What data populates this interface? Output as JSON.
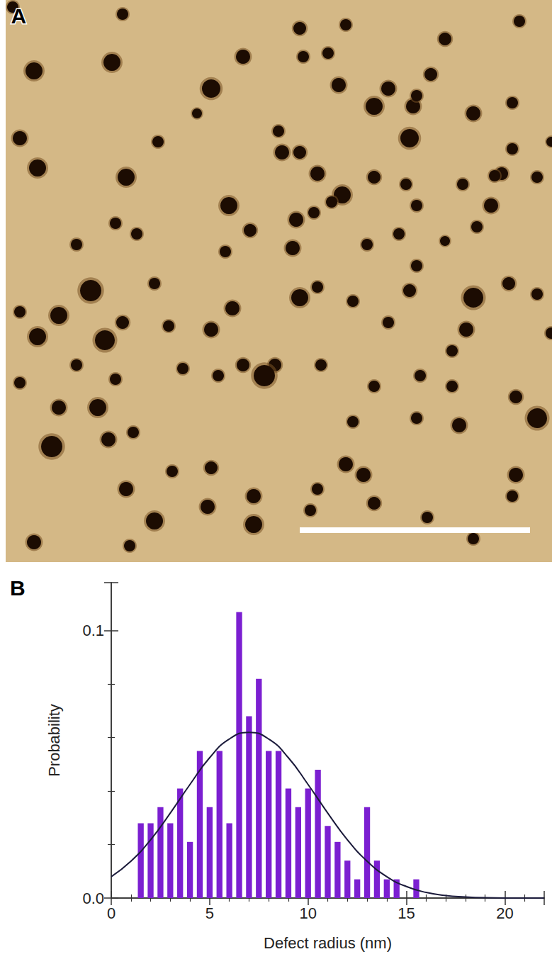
{
  "chart_data": [
    {
      "type": "image",
      "label": "A",
      "color": "#d4b886",
      "xlim": [
        0,
        771
      ],
      "ylim": [
        0,
        793
      ],
      "tick_labels": false,
      "defects": [
        [
          40,
          100,
          12
        ],
        [
          150,
          88,
          12
        ],
        [
          165,
          20,
          8
        ],
        [
          290,
          125,
          13
        ],
        [
          335,
          80,
          10
        ],
        [
          415,
          40,
          9
        ],
        [
          420,
          80,
          8
        ],
        [
          455,
          75,
          8
        ],
        [
          470,
          120,
          10
        ],
        [
          480,
          35,
          8
        ],
        [
          520,
          150,
          12
        ],
        [
          540,
          125,
          10
        ],
        [
          570,
          195,
          13
        ],
        [
          575,
          150,
          10
        ],
        [
          580,
          135,
          8
        ],
        [
          600,
          105,
          9
        ],
        [
          620,
          55,
          9
        ],
        [
          660,
          160,
          10
        ],
        [
          715,
          145,
          8
        ],
        [
          715,
          210,
          8
        ],
        [
          750,
          250,
          8
        ],
        [
          700,
          245,
          9
        ],
        [
          690,
          248,
          8
        ],
        [
          20,
          195,
          10
        ],
        [
          45,
          237,
          12
        ],
        [
          170,
          250,
          12
        ],
        [
          215,
          200,
          8
        ],
        [
          270,
          160,
          7
        ],
        [
          385,
          185,
          8
        ],
        [
          390,
          215,
          10
        ],
        [
          415,
          215,
          9
        ],
        [
          440,
          245,
          10
        ],
        [
          475,
          275,
          12
        ],
        [
          520,
          250,
          9
        ],
        [
          565,
          260,
          8
        ],
        [
          580,
          290,
          8
        ],
        [
          645,
          260,
          8
        ],
        [
          685,
          290,
          10
        ],
        [
          315,
          290,
          12
        ],
        [
          345,
          325,
          9
        ],
        [
          310,
          355,
          8
        ],
        [
          155,
          315,
          8
        ],
        [
          185,
          330,
          8
        ],
        [
          100,
          345,
          8
        ],
        [
          410,
          310,
          10
        ],
        [
          435,
          300,
          8
        ],
        [
          460,
          285,
          8
        ],
        [
          510,
          345,
          8
        ],
        [
          555,
          330,
          8
        ],
        [
          665,
          320,
          8
        ],
        [
          405,
          350,
          10
        ],
        [
          120,
          410,
          15
        ],
        [
          210,
          400,
          8
        ],
        [
          20,
          440,
          8
        ],
        [
          75,
          445,
          12
        ],
        [
          45,
          475,
          12
        ],
        [
          140,
          480,
          14
        ],
        [
          165,
          455,
          9
        ],
        [
          230,
          460,
          8
        ],
        [
          320,
          435,
          10
        ],
        [
          290,
          465,
          10
        ],
        [
          415,
          420,
          12
        ],
        [
          440,
          405,
          8
        ],
        [
          490,
          425,
          8
        ],
        [
          540,
          455,
          8
        ],
        [
          570,
          410,
          9
        ],
        [
          580,
          375,
          8
        ],
        [
          620,
          340,
          7
        ],
        [
          660,
          420,
          14
        ],
        [
          650,
          465,
          10
        ],
        [
          710,
          400,
          9
        ],
        [
          750,
          415,
          8
        ],
        [
          380,
          515,
          9
        ],
        [
          335,
          515,
          9
        ],
        [
          365,
          530,
          15
        ],
        [
          300,
          530,
          8
        ],
        [
          250,
          520,
          8
        ],
        [
          100,
          515,
          8
        ],
        [
          155,
          535,
          8
        ],
        [
          75,
          575,
          10
        ],
        [
          130,
          575,
          12
        ],
        [
          20,
          540,
          8
        ],
        [
          445,
          515,
          8
        ],
        [
          520,
          545,
          8
        ],
        [
          585,
          530,
          8
        ],
        [
          630,
          495,
          8
        ],
        [
          630,
          545,
          8
        ],
        [
          640,
          600,
          10
        ],
        [
          580,
          590,
          8
        ],
        [
          750,
          590,
          14
        ],
        [
          720,
          560,
          9
        ],
        [
          490,
          595,
          8
        ],
        [
          180,
          610,
          8
        ],
        [
          65,
          630,
          15
        ],
        [
          145,
          620,
          10
        ],
        [
          170,
          690,
          10
        ],
        [
          235,
          665,
          8
        ],
        [
          290,
          660,
          9
        ],
        [
          285,
          715,
          10
        ],
        [
          350,
          700,
          10
        ],
        [
          440,
          690,
          8
        ],
        [
          480,
          655,
          10
        ],
        [
          505,
          670,
          10
        ],
        [
          520,
          710,
          9
        ],
        [
          720,
          670,
          10
        ],
        [
          715,
          700,
          8
        ],
        [
          210,
          735,
          12
        ],
        [
          350,
          740,
          12
        ],
        [
          430,
          720,
          8
        ],
        [
          595,
          730,
          8
        ],
        [
          660,
          760,
          8
        ],
        [
          40,
          765,
          10
        ],
        [
          175,
          770,
          8
        ],
        [
          725,
          30,
          8
        ],
        [
          770,
          200,
          7
        ],
        [
          10,
          10,
          8
        ],
        [
          770,
          470,
          8
        ]
      ],
      "scale_bar": [
        415,
        740,
        748
      ]
    },
    {
      "type": "histogram",
      "label": "B",
      "xlabel": "Defect radius (nm)",
      "ylabel": "Probability",
      "bins": [
        1.25,
        1.75,
        2.25,
        2.75,
        3.25,
        3.75,
        4.25,
        4.75,
        5.25,
        5.75,
        6.25,
        6.75,
        7.25,
        7.75,
        8.25,
        8.75,
        9.25,
        9.75,
        10.25,
        10.75,
        11.25,
        11.75,
        12.25,
        12.75,
        13.25,
        13.75,
        14.25,
        14.75,
        15.25,
        15.75
      ],
      "values": [
        0.028,
        0.028,
        0.034,
        0.028,
        0.041,
        0.021,
        0.055,
        0.034,
        0.055,
        0.028,
        0.107,
        0.068,
        0.082,
        0.055,
        0.055,
        0.041,
        0.034,
        0.041,
        0.048,
        0.027,
        0.021,
        0.014,
        0.007,
        0.034,
        0.014,
        0.007,
        0.007,
        0.0,
        0.007
      ],
      "color": "#7b1fd1",
      "fit": {
        "x": [
          0,
          1,
          2,
          3,
          4,
          5,
          6,
          7,
          8,
          9,
          10,
          11,
          12,
          13,
          14,
          15,
          16,
          17,
          18,
          19,
          20,
          21,
          22
        ],
        "values": [
          0.008,
          0.0138,
          0.0218,
          0.0318,
          0.0425,
          0.0525,
          0.0595,
          0.062,
          0.0595,
          0.0525,
          0.0425,
          0.0318,
          0.0218,
          0.0138,
          0.008,
          0.0043,
          0.0021,
          0.0009,
          0.0004,
          0.0001,
          0.0,
          0.0,
          0.0
        ],
        "color": "#1b1b3b",
        "type": "line"
      },
      "xlim": [
        0,
        22
      ],
      "ylim": [
        0,
        0.118
      ],
      "xticks": [
        0,
        5,
        10,
        15,
        20
      ],
      "yticks": [
        {
          "value": 0,
          "label": "0.0"
        },
        0.1
      ],
      "grid": false
    }
  ]
}
